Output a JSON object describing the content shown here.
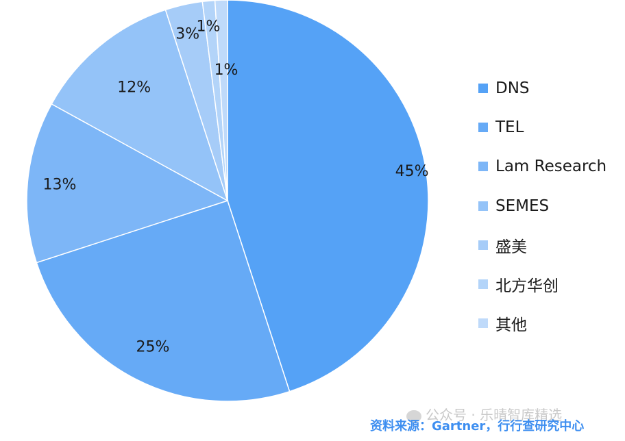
{
  "chart_data": {
    "type": "pie",
    "categories": [
      "DNS",
      "TEL",
      "Lam Research",
      "SEMES",
      "盛美",
      "北方华创",
      "其他"
    ],
    "values": [
      45,
      25,
      13,
      12,
      3,
      1,
      1
    ],
    "value_labels": [
      "45%",
      "25%",
      "13%",
      "12%",
      "3%",
      "1%",
      "1%"
    ],
    "colors": [
      "#55a2f6",
      "#66aaf6",
      "#7db6f7",
      "#94c3f8",
      "#a6ccf8",
      "#b3d4f9",
      "#bfdafa"
    ],
    "legend_position": "right",
    "start_angle": "12 o'clock",
    "direction": "clockwise"
  },
  "watermark": {
    "icon": "wechat-icon",
    "text": "公众号 · 乐晴智库精选"
  },
  "source_note": "资料来源：Gartner，行行查研究中心"
}
